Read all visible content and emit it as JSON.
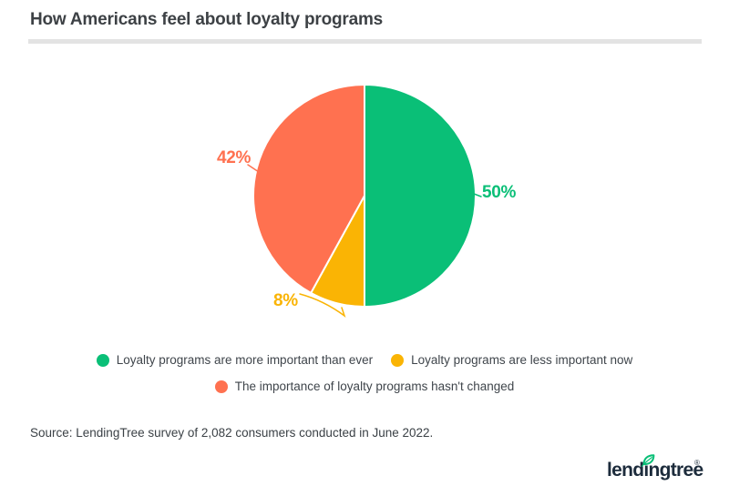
{
  "chart_data": {
    "type": "pie",
    "title": "How Americans feel about loyalty programs",
    "start_angle_deg": 0,
    "direction": "clockwise",
    "legend_position": "bottom",
    "slices": [
      {
        "label": "Loyalty programs are more important than ever",
        "value": 50,
        "pct_label": "50%",
        "color": "#0abf77"
      },
      {
        "label": "Loyalty programs are less important now",
        "value": 8,
        "pct_label": "8%",
        "color": "#fab404"
      },
      {
        "label": "The importance of loyalty programs hasn't changed",
        "value": 42,
        "pct_label": "42%",
        "color": "#ff7150"
      }
    ]
  },
  "source": {
    "text": "Source: LendingTree survey of 2,082 consumers conducted in June 2022."
  },
  "logo": {
    "text": "lendingtree",
    "registered": "®"
  },
  "theme": {
    "title_color": "#3d4145",
    "divider_color": "#e3e3e3",
    "legend_text_color": "#3f454b",
    "source_text_color": "#3b4146",
    "logo_color": "#1d2c3c",
    "accent_green": "#0abf77",
    "background": "#ffffff"
  }
}
